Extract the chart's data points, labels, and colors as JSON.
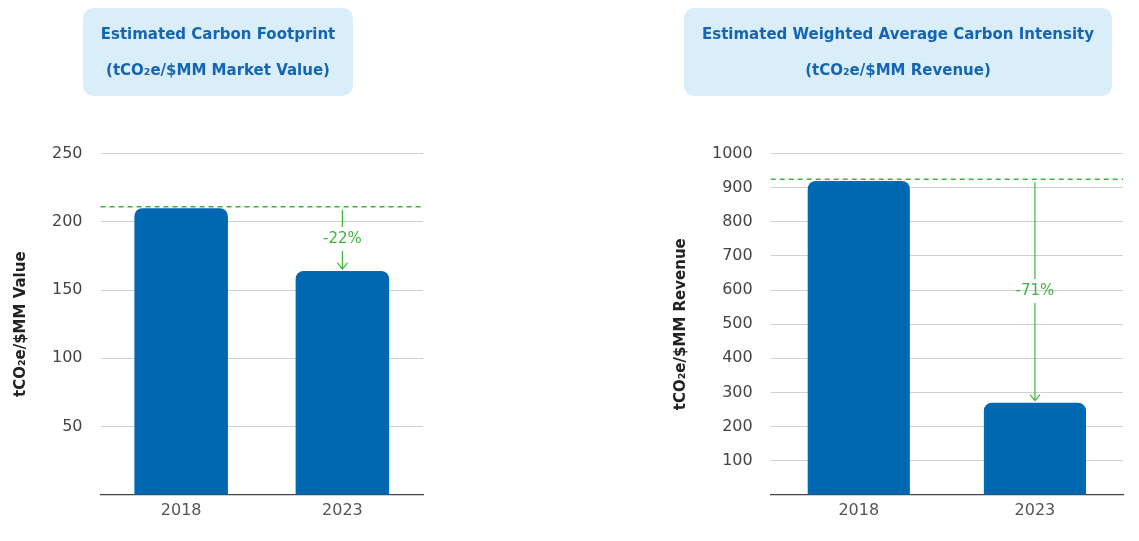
{
  "chart_data": [
    {
      "type": "bar",
      "title": "Estimated Carbon Footprint",
      "subtitle": "(tCO₂e/$MM Market Value)",
      "ylabel": "tCO₂e/$MM Value",
      "categories": [
        "2018",
        "2023"
      ],
      "values": [
        210,
        164
      ],
      "color": "#0067b1",
      "ylim": [
        0,
        250
      ],
      "yticks": [
        50,
        100,
        150,
        200,
        250
      ],
      "grid": "y",
      "ref_lines": [
        {
          "axis": "y",
          "value": 211,
          "color": "#3db53d",
          "line_style": "dashed"
        }
      ],
      "annotations": [
        {
          "text": "-22%",
          "x": "2023",
          "y": 164
        }
      ]
    },
    {
      "type": "bar",
      "title": "Estimated Weighted Average Carbon Intensity",
      "subtitle": "(tCO₂e/$MM Revenue)",
      "ylabel": "tCO₂e/$MM Revenue",
      "categories": [
        "2018",
        "2023"
      ],
      "values": [
        920,
        270
      ],
      "color": "#0067b1",
      "ylim": [
        0,
        1000
      ],
      "yticks": [
        100,
        200,
        300,
        400,
        500,
        600,
        700,
        800,
        900,
        1000
      ],
      "grid": "y",
      "ref_lines": [
        {
          "axis": "y",
          "value": 925,
          "color": "#3db53d",
          "line_style": "dashed"
        }
      ],
      "annotations": [
        {
          "text": "-71%",
          "x": "2023",
          "y": 270
        }
      ]
    }
  ]
}
